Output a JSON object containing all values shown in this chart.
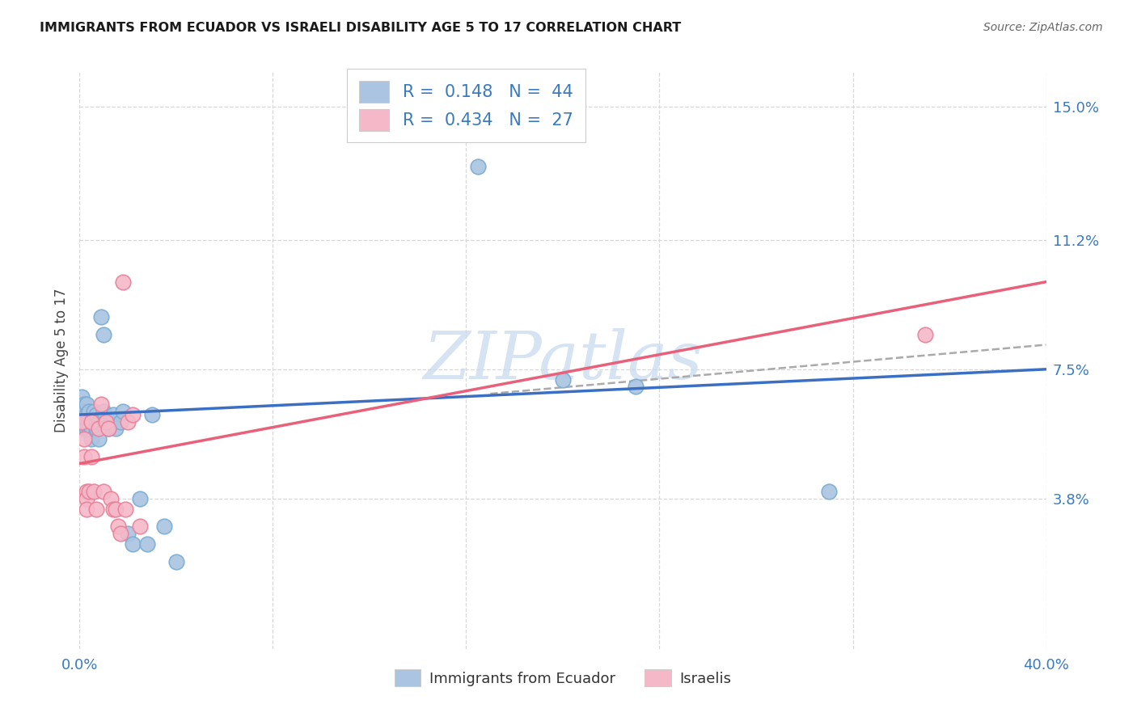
{
  "title": "IMMIGRANTS FROM ECUADOR VS ISRAELI DISABILITY AGE 5 TO 17 CORRELATION CHART",
  "source": "Source: ZipAtlas.com",
  "ylabel": "Disability Age 5 to 17",
  "xlim": [
    0,
    0.4
  ],
  "ylim": [
    -0.005,
    0.16
  ],
  "plot_ylim": [
    0.0,
    0.16
  ],
  "xticks": [
    0.0,
    0.08,
    0.16,
    0.24,
    0.32,
    0.4
  ],
  "xticklabels": [
    "0.0%",
    "",
    "",
    "",
    "",
    "40.0%"
  ],
  "ytick_positions": [
    0.038,
    0.075,
    0.112,
    0.15
  ],
  "ytick_labels": [
    "3.8%",
    "7.5%",
    "11.2%",
    "15.0%"
  ],
  "ecuador_color": "#aac4e2",
  "ecuador_edge": "#7aadd4",
  "israel_color": "#f5b8c8",
  "israel_edge": "#e8829a",
  "line_blue": "#3a6fc4",
  "line_pink": "#e8607a",
  "dash_color": "#aaaaaa",
  "ecuador_R": "0.148",
  "ecuador_N": "44",
  "israel_R": "0.434",
  "israel_N": "27",
  "legend_text_color": "#3a7abf",
  "ecuador_x": [
    0.001,
    0.001,
    0.001,
    0.002,
    0.002,
    0.002,
    0.002,
    0.003,
    0.003,
    0.003,
    0.003,
    0.004,
    0.004,
    0.004,
    0.005,
    0.005,
    0.005,
    0.006,
    0.006,
    0.007,
    0.007,
    0.008,
    0.008,
    0.009,
    0.01,
    0.01,
    0.011,
    0.012,
    0.013,
    0.014,
    0.015,
    0.017,
    0.018,
    0.02,
    0.022,
    0.025,
    0.028,
    0.03,
    0.035,
    0.04,
    0.165,
    0.2,
    0.23,
    0.31
  ],
  "ecuador_y": [
    0.067,
    0.063,
    0.06,
    0.065,
    0.063,
    0.06,
    0.058,
    0.065,
    0.062,
    0.06,
    0.058,
    0.06,
    0.058,
    0.063,
    0.06,
    0.058,
    0.055,
    0.063,
    0.06,
    0.062,
    0.058,
    0.06,
    0.055,
    0.09,
    0.085,
    0.063,
    0.06,
    0.058,
    0.06,
    0.062,
    0.058,
    0.06,
    0.063,
    0.028,
    0.025,
    0.038,
    0.025,
    0.062,
    0.03,
    0.02,
    0.133,
    0.072,
    0.07,
    0.04
  ],
  "israel_x": [
    0.001,
    0.002,
    0.002,
    0.003,
    0.003,
    0.003,
    0.004,
    0.005,
    0.005,
    0.006,
    0.007,
    0.008,
    0.009,
    0.01,
    0.011,
    0.012,
    0.013,
    0.014,
    0.015,
    0.016,
    0.017,
    0.018,
    0.019,
    0.02,
    0.022,
    0.025,
    0.35
  ],
  "israel_y": [
    0.06,
    0.055,
    0.05,
    0.04,
    0.038,
    0.035,
    0.04,
    0.06,
    0.05,
    0.04,
    0.035,
    0.058,
    0.065,
    0.04,
    0.06,
    0.058,
    0.038,
    0.035,
    0.035,
    0.03,
    0.028,
    0.1,
    0.035,
    0.06,
    0.062,
    0.03,
    0.085
  ],
  "watermark": "ZIPatlas",
  "watermark_color": "#c5d8ef",
  "background_color": "#ffffff",
  "grid_color": "#d8d8d8"
}
